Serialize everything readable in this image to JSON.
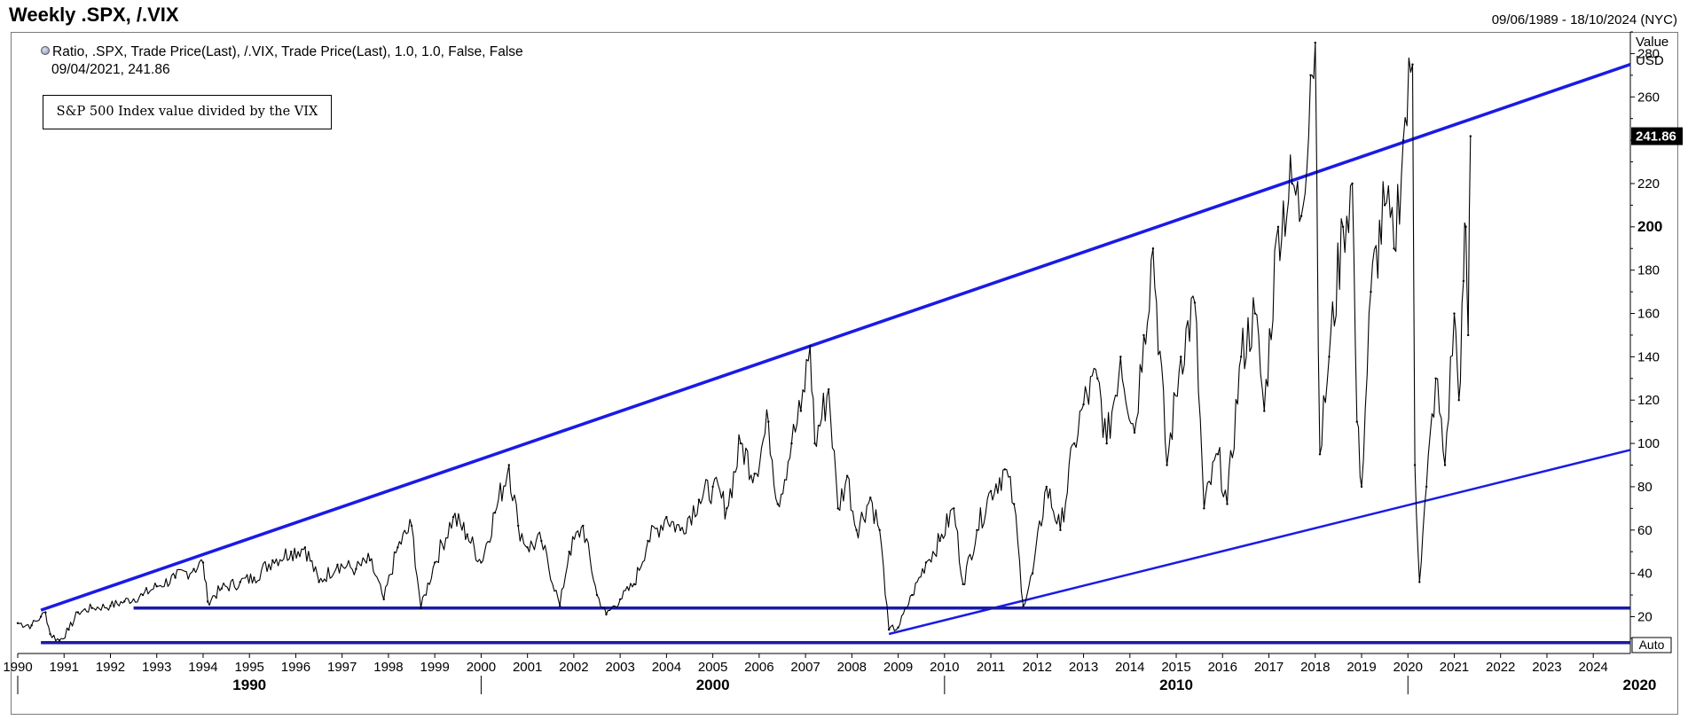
{
  "header": {
    "title": "Weekly .SPX, /.VIX",
    "date_range": "09/06/1989 - 18/10/2024 (NYC)"
  },
  "legend": {
    "icon": "series-dot-icon",
    "line": "Ratio, .SPX, Trade Price(Last), /.VIX, Trade Price(Last),  1.0, 1.0, False, False",
    "sub": "09/04/2021, 241.86"
  },
  "annotation": "S&P 500 Index value divided by the VIX",
  "axis": {
    "y_title": "Value",
    "y_unit": "USD",
    "last_value_label": "241.86",
    "auto_label": "Auto"
  },
  "colors": {
    "series": "#000000",
    "trendlines": "#1a1ae6",
    "support": "#1a1aa8",
    "last_value_box": "#000000"
  },
  "chart_data": {
    "type": "line",
    "title": "Weekly .SPX, /.VIX",
    "xlabel": "",
    "ylabel": "Value USD",
    "xlim": [
      1990.0,
      2024.8
    ],
    "ylim": [
      3,
      290
    ],
    "grid": false,
    "y_ticks": [
      20,
      40,
      60,
      80,
      100,
      120,
      140,
      160,
      180,
      200,
      220,
      240,
      260,
      280
    ],
    "y_tick_labels": [
      "20",
      "40",
      "60",
      "80",
      "100",
      "120",
      "140",
      "160",
      "180",
      "200",
      "220",
      "240",
      "260",
      "280"
    ],
    "x_year_ticks": [
      "1990",
      "1991",
      "1992",
      "1993",
      "1994",
      "1995",
      "1996",
      "1997",
      "1998",
      "1999",
      "2000",
      "2001",
      "2002",
      "2003",
      "2004",
      "2005",
      "2006",
      "2007",
      "2008",
      "2009",
      "2010",
      "2011",
      "2012",
      "2013",
      "2014",
      "2015",
      "2016",
      "2017",
      "2018",
      "2019",
      "2020",
      "2021",
      "2022",
      "2023",
      "2024"
    ],
    "x_decade_ticks": [
      "1990",
      "2000",
      "2010",
      "2020"
    ],
    "last_value": 241.86,
    "series": [
      {
        "values": [
          {
            "x": 1990.0,
            "y": 17
          },
          {
            "x": 1990.3,
            "y": 16
          },
          {
            "x": 1990.5,
            "y": 20
          },
          {
            "x": 1990.6,
            "y": 22
          },
          {
            "x": 1990.7,
            "y": 12
          },
          {
            "x": 1990.9,
            "y": 9
          },
          {
            "x": 1991.1,
            "y": 14
          },
          {
            "x": 1991.3,
            "y": 22
          },
          {
            "x": 1991.6,
            "y": 24
          },
          {
            "x": 1992.0,
            "y": 25
          },
          {
            "x": 1992.3,
            "y": 27
          },
          {
            "x": 1992.7,
            "y": 30
          },
          {
            "x": 1993.0,
            "y": 34
          },
          {
            "x": 1993.4,
            "y": 38
          },
          {
            "x": 1993.8,
            "y": 42
          },
          {
            "x": 1994.0,
            "y": 45
          },
          {
            "x": 1994.1,
            "y": 27
          },
          {
            "x": 1994.4,
            "y": 33
          },
          {
            "x": 1994.8,
            "y": 36
          },
          {
            "x": 1995.1,
            "y": 38
          },
          {
            "x": 1995.5,
            "y": 46
          },
          {
            "x": 1995.9,
            "y": 50
          },
          {
            "x": 1996.2,
            "y": 52
          },
          {
            "x": 1996.5,
            "y": 36
          },
          {
            "x": 1996.9,
            "y": 44
          },
          {
            "x": 1997.3,
            "y": 42
          },
          {
            "x": 1997.6,
            "y": 46
          },
          {
            "x": 1997.9,
            "y": 28
          },
          {
            "x": 1998.2,
            "y": 52
          },
          {
            "x": 1998.5,
            "y": 62
          },
          {
            "x": 1998.7,
            "y": 24
          },
          {
            "x": 1999.0,
            "y": 45
          },
          {
            "x": 1999.4,
            "y": 66
          },
          {
            "x": 1999.7,
            "y": 58
          },
          {
            "x": 2000.0,
            "y": 45
          },
          {
            "x": 2000.3,
            "y": 68
          },
          {
            "x": 2000.6,
            "y": 90
          },
          {
            "x": 2000.8,
            "y": 62
          },
          {
            "x": 2001.0,
            "y": 52
          },
          {
            "x": 2001.3,
            "y": 55
          },
          {
            "x": 2001.7,
            "y": 25
          },
          {
            "x": 2001.9,
            "y": 50
          },
          {
            "x": 2002.2,
            "y": 62
          },
          {
            "x": 2002.5,
            "y": 30
          },
          {
            "x": 2002.7,
            "y": 21
          },
          {
            "x": 2003.0,
            "y": 28
          },
          {
            "x": 2003.3,
            "y": 35
          },
          {
            "x": 2003.6,
            "y": 55
          },
          {
            "x": 2004.0,
            "y": 66
          },
          {
            "x": 2004.3,
            "y": 60
          },
          {
            "x": 2004.7,
            "y": 74
          },
          {
            "x": 2005.0,
            "y": 80
          },
          {
            "x": 2005.3,
            "y": 70
          },
          {
            "x": 2005.6,
            "y": 100
          },
          {
            "x": 2005.9,
            "y": 86
          },
          {
            "x": 2006.2,
            "y": 110
          },
          {
            "x": 2006.4,
            "y": 72
          },
          {
            "x": 2006.7,
            "y": 100
          },
          {
            "x": 2006.9,
            "y": 115
          },
          {
            "x": 2007.1,
            "y": 145
          },
          {
            "x": 2007.2,
            "y": 100
          },
          {
            "x": 2007.5,
            "y": 125
          },
          {
            "x": 2007.7,
            "y": 70
          },
          {
            "x": 2007.9,
            "y": 85
          },
          {
            "x": 2008.1,
            "y": 60
          },
          {
            "x": 2008.4,
            "y": 75
          },
          {
            "x": 2008.6,
            "y": 60
          },
          {
            "x": 2008.8,
            "y": 14
          },
          {
            "x": 2009.0,
            "y": 15
          },
          {
            "x": 2009.3,
            "y": 30
          },
          {
            "x": 2009.6,
            "y": 45
          },
          {
            "x": 2009.9,
            "y": 55
          },
          {
            "x": 2010.2,
            "y": 70
          },
          {
            "x": 2010.4,
            "y": 35
          },
          {
            "x": 2010.7,
            "y": 60
          },
          {
            "x": 2011.0,
            "y": 78
          },
          {
            "x": 2011.3,
            "y": 88
          },
          {
            "x": 2011.5,
            "y": 72
          },
          {
            "x": 2011.7,
            "y": 25
          },
          {
            "x": 2011.9,
            "y": 40
          },
          {
            "x": 2012.2,
            "y": 80
          },
          {
            "x": 2012.5,
            "y": 60
          },
          {
            "x": 2012.8,
            "y": 100
          },
          {
            "x": 2013.0,
            "y": 118
          },
          {
            "x": 2013.3,
            "y": 130
          },
          {
            "x": 2013.5,
            "y": 100
          },
          {
            "x": 2013.8,
            "y": 140
          },
          {
            "x": 2014.1,
            "y": 105
          },
          {
            "x": 2014.3,
            "y": 150
          },
          {
            "x": 2014.5,
            "y": 190
          },
          {
            "x": 2014.8,
            "y": 90
          },
          {
            "x": 2015.1,
            "y": 140
          },
          {
            "x": 2015.4,
            "y": 165
          },
          {
            "x": 2015.6,
            "y": 70
          },
          {
            "x": 2015.9,
            "y": 95
          },
          {
            "x": 2016.1,
            "y": 72
          },
          {
            "x": 2016.4,
            "y": 140
          },
          {
            "x": 2016.7,
            "y": 160
          },
          {
            "x": 2016.9,
            "y": 115
          },
          {
            "x": 2017.2,
            "y": 200
          },
          {
            "x": 2017.5,
            "y": 220
          },
          {
            "x": 2017.7,
            "y": 205
          },
          {
            "x": 2017.9,
            "y": 270
          },
          {
            "x": 2018.0,
            "y": 285
          },
          {
            "x": 2018.1,
            "y": 95
          },
          {
            "x": 2018.3,
            "y": 140
          },
          {
            "x": 2018.6,
            "y": 200
          },
          {
            "x": 2018.8,
            "y": 220
          },
          {
            "x": 2018.9,
            "y": 110
          },
          {
            "x": 2019.0,
            "y": 80
          },
          {
            "x": 2019.2,
            "y": 170
          },
          {
            "x": 2019.5,
            "y": 210
          },
          {
            "x": 2019.7,
            "y": 190
          },
          {
            "x": 2019.9,
            "y": 240
          },
          {
            "x": 2020.1,
            "y": 275
          },
          {
            "x": 2020.15,
            "y": 90
          },
          {
            "x": 2020.25,
            "y": 36
          },
          {
            "x": 2020.4,
            "y": 80
          },
          {
            "x": 2020.6,
            "y": 130
          },
          {
            "x": 2020.8,
            "y": 90
          },
          {
            "x": 2021.0,
            "y": 160
          },
          {
            "x": 2021.1,
            "y": 120
          },
          {
            "x": 2021.2,
            "y": 175
          },
          {
            "x": 2021.25,
            "y": 200
          },
          {
            "x": 2021.3,
            "y": 150
          },
          {
            "x": 2021.35,
            "y": 241.86
          }
        ]
      }
    ],
    "trendlines": [
      {
        "kind": "upper-channel",
        "x": [
          1990.5,
          2024.8
        ],
        "y": [
          23,
          275
        ]
      },
      {
        "kind": "lower-channel",
        "x": [
          2008.8,
          2024.8
        ],
        "y": [
          12,
          97
        ]
      },
      {
        "kind": "support",
        "x": [
          1992.5,
          2024.8
        ],
        "y": [
          24,
          24
        ]
      },
      {
        "kind": "floor",
        "x": [
          1990.5,
          2024.8
        ],
        "y": [
          8,
          8
        ]
      }
    ]
  }
}
